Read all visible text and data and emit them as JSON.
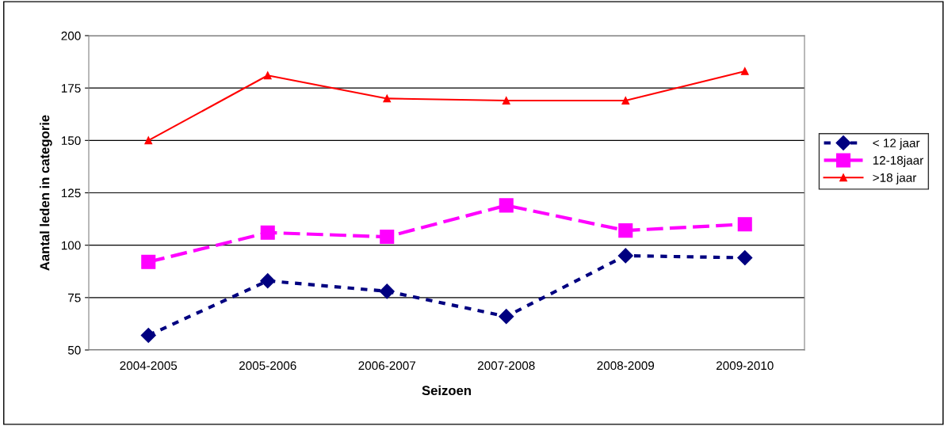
{
  "chart_data": {
    "type": "line",
    "xlabel": "Seizoen",
    "ylabel": "Aantal leden in categorie",
    "categories": [
      "2004-2005",
      "2005-2006",
      "2006-2007",
      "2007-2008",
      "2008-2009",
      "2009-2010"
    ],
    "series": [
      {
        "name": "< 12 jaar",
        "color": "#000080",
        "marker": "diamond",
        "line_style": "dotted",
        "values": [
          57,
          83,
          78,
          66,
          95,
          94
        ]
      },
      {
        "name": "12-18jaar",
        "color": "#ff00ff",
        "marker": "square",
        "line_style": "dashed",
        "values": [
          92,
          106,
          104,
          119,
          107,
          110
        ]
      },
      {
        "name": ">18 jaar",
        "color": "#ff0000",
        "marker": "triangle",
        "line_style": "solid",
        "values": [
          150,
          181,
          170,
          169,
          169,
          183
        ]
      }
    ],
    "ylim": [
      50,
      200
    ],
    "yticks": [
      50,
      75,
      100,
      125,
      150,
      175,
      200
    ],
    "grid": "y",
    "legend": "right"
  }
}
